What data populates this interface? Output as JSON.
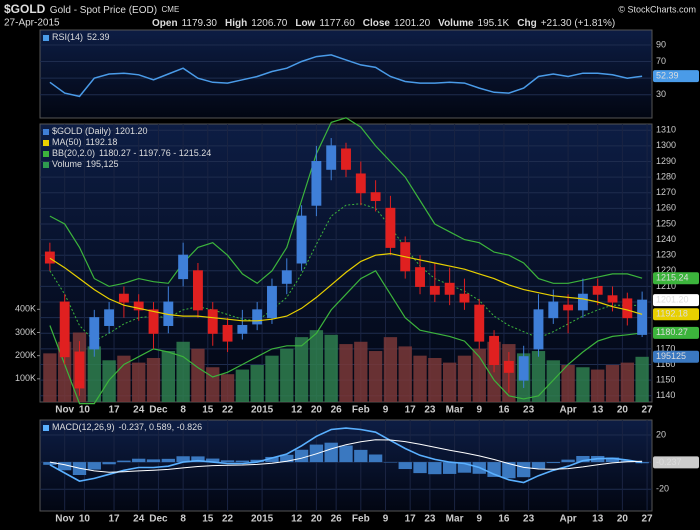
{
  "header": {
    "symbol": "$GOLD",
    "name": "Gold - Spot Price (EOD)",
    "exchange": "CME",
    "date": "27-Apr-2015",
    "quote": [
      {
        "label": "Open",
        "value": "1179.30"
      },
      {
        "label": "High",
        "value": "1206.70"
      },
      {
        "label": "Low",
        "value": "1177.60"
      },
      {
        "label": "Close",
        "value": "1201.20"
      },
      {
        "label": "Volume",
        "value": "195.1K"
      },
      {
        "label": "Chg",
        "value": "+21.30 (+1.81%)"
      }
    ],
    "credit": "© StockCharts.com"
  },
  "chart_data": [
    {
      "type": "line",
      "grid": true,
      "xlim": [
        -2,
        122
      ],
      "ylim": [
        2,
        108
      ],
      "yticks": [
        90,
        70,
        50,
        30
      ],
      "x": [
        0,
        3,
        6,
        9,
        12,
        15,
        18,
        21,
        24,
        27,
        30,
        33,
        36,
        39,
        42,
        45,
        48,
        51,
        54,
        57,
        60,
        63,
        66,
        69,
        72,
        75,
        78,
        81,
        84,
        87,
        90,
        93,
        96,
        99,
        102,
        105,
        108,
        111,
        114,
        117,
        120
      ],
      "series": [
        {
          "name": "RSI(14)",
          "last_label": "52.39",
          "color": "#4a9be8",
          "values": [
            45,
            32,
            28,
            50,
            55,
            56,
            54,
            48,
            55,
            62,
            50,
            45,
            44,
            48,
            52,
            58,
            62,
            70,
            76,
            78,
            72,
            66,
            63,
            52,
            46,
            44,
            44,
            45,
            44,
            38,
            33,
            32,
            38,
            52,
            55,
            52,
            56,
            56,
            54,
            50,
            52.39
          ]
        }
      ]
    },
    {
      "type": "candlestick",
      "title": "$GOLD (Daily)",
      "close_label": "1201.20",
      "grid": true,
      "up_color": "#3f7fd8",
      "down_color": "#e02020",
      "xlim": [
        -2,
        122
      ],
      "ylim": [
        1136,
        1314
      ],
      "yticks": [
        1140,
        1150,
        1160,
        1170,
        1180,
        1190,
        1200,
        1210,
        1220,
        1230,
        1240,
        1250,
        1260,
        1270,
        1280,
        1290,
        1300,
        1310
      ],
      "xticks": [
        {
          "value": 3,
          "label": "Nov"
        },
        {
          "value": 7,
          "label": "10"
        },
        {
          "value": 13,
          "label": "17"
        },
        {
          "value": 18,
          "label": "24"
        },
        {
          "value": 22,
          "label": "Dec"
        },
        {
          "value": 27,
          "label": "8"
        },
        {
          "value": 32,
          "label": "15"
        },
        {
          "value": 36,
          "label": "22"
        },
        {
          "value": 43,
          "label": "2015"
        },
        {
          "value": 50,
          "label": "12"
        },
        {
          "value": 54,
          "label": "20"
        },
        {
          "value": 58,
          "label": "26"
        },
        {
          "value": 63,
          "label": "Feb"
        },
        {
          "value": 68,
          "label": "9"
        },
        {
          "value": 73,
          "label": "17"
        },
        {
          "value": 77,
          "label": "23"
        },
        {
          "value": 82,
          "label": "Mar"
        },
        {
          "value": 87,
          "label": "9"
        },
        {
          "value": 92,
          "label": "16"
        },
        {
          "value": 97,
          "label": "23"
        },
        {
          "value": 105,
          "label": "Apr"
        },
        {
          "value": 111,
          "label": "13"
        },
        {
          "value": 116,
          "label": "20"
        },
        {
          "value": 121,
          "label": "27"
        }
      ],
      "x": [
        0,
        3,
        6,
        9,
        12,
        15,
        18,
        21,
        24,
        27,
        30,
        33,
        36,
        39,
        42,
        45,
        48,
        51,
        54,
        57,
        60,
        63,
        66,
        69,
        72,
        75,
        78,
        81,
        84,
        87,
        90,
        93,
        96,
        99,
        102,
        105,
        108,
        111,
        114,
        117,
        120
      ],
      "open": [
        1232,
        1200,
        1168,
        1170,
        1185,
        1205,
        1200,
        1195,
        1185,
        1215,
        1220,
        1195,
        1185,
        1180,
        1186,
        1190,
        1212,
        1225,
        1262,
        1285,
        1298,
        1282,
        1270,
        1260,
        1238,
        1222,
        1210,
        1212,
        1205,
        1198,
        1178,
        1162,
        1150,
        1170,
        1190,
        1198,
        1195,
        1210,
        1204,
        1202,
        1179.3
      ],
      "high": [
        1238,
        1205,
        1175,
        1195,
        1200,
        1210,
        1205,
        1200,
        1210,
        1238,
        1225,
        1200,
        1190,
        1195,
        1200,
        1215,
        1228,
        1262,
        1300,
        1305,
        1302,
        1290,
        1278,
        1268,
        1242,
        1230,
        1225,
        1222,
        1215,
        1202,
        1182,
        1168,
        1172,
        1205,
        1208,
        1205,
        1215,
        1215,
        1210,
        1206,
        1206.7
      ],
      "low": [
        1220,
        1160,
        1140,
        1165,
        1180,
        1190,
        1188,
        1170,
        1180,
        1210,
        1190,
        1172,
        1168,
        1176,
        1182,
        1186,
        1205,
        1220,
        1255,
        1278,
        1280,
        1262,
        1258,
        1230,
        1215,
        1205,
        1200,
        1198,
        1195,
        1170,
        1155,
        1142,
        1145,
        1165,
        1186,
        1180,
        1190,
        1198,
        1194,
        1185,
        1177.6
      ],
      "close": [
        1225,
        1165,
        1145,
        1190,
        1195,
        1200,
        1195,
        1180,
        1200,
        1230,
        1195,
        1180,
        1175,
        1185,
        1195,
        1210,
        1220,
        1255,
        1290,
        1300,
        1285,
        1270,
        1265,
        1235,
        1220,
        1210,
        1205,
        1205,
        1200,
        1175,
        1160,
        1155,
        1165,
        1195,
        1200,
        1195,
        1205,
        1205,
        1200,
        1190,
        1201.2
      ],
      "overlays": [
        {
          "name": "MA(50)",
          "label": "1192.18",
          "color": "#e8d000",
          "values": [
            1228,
            1222,
            1215,
            1208,
            1202,
            1198,
            1196,
            1194,
            1192,
            1191,
            1191,
            1190,
            1189,
            1188,
            1188,
            1189,
            1191,
            1196,
            1203,
            1211,
            1219,
            1226,
            1230,
            1231,
            1229,
            1227,
            1225,
            1223,
            1221,
            1218,
            1215,
            1211,
            1208,
            1206,
            1204,
            1203,
            1202,
            1200,
            1197,
            1195,
            1192.18
          ]
        },
        {
          "name": "BB(20,2.0)",
          "label": "1180.27 - 1197.76 - 1215.24",
          "upper_tag": "1215.24",
          "lower_tag": "1180.27",
          "color": "#3cb43c",
          "upper": [
            1255,
            1250,
            1235,
            1215,
            1210,
            1212,
            1215,
            1213,
            1212,
            1225,
            1235,
            1238,
            1230,
            1218,
            1212,
            1220,
            1235,
            1265,
            1295,
            1315,
            1318,
            1312,
            1300,
            1290,
            1280,
            1265,
            1250,
            1245,
            1240,
            1238,
            1232,
            1230,
            1225,
            1215,
            1212,
            1212,
            1214,
            1216,
            1218,
            1218,
            1215.24
          ],
          "middle": [
            1220,
            1205,
            1185,
            1175,
            1180,
            1186,
            1190,
            1191,
            1190,
            1195,
            1197,
            1195,
            1192,
            1189,
            1188,
            1195,
            1203,
            1218,
            1237,
            1255,
            1262,
            1263,
            1260,
            1248,
            1235,
            1223,
            1215,
            1211,
            1207,
            1201,
            1191,
            1185,
            1181,
            1177,
            1181,
            1186,
            1191,
            1195,
            1198,
            1198,
            1197.76
          ],
          "lower": [
            1185,
            1160,
            1135,
            1135,
            1150,
            1160,
            1165,
            1170,
            1168,
            1165,
            1158,
            1152,
            1155,
            1160,
            1165,
            1170,
            1172,
            1172,
            1180,
            1195,
            1205,
            1215,
            1220,
            1205,
            1190,
            1182,
            1180,
            1178,
            1175,
            1165,
            1150,
            1140,
            1138,
            1140,
            1150,
            1160,
            1168,
            1175,
            1178,
            1179,
            1180.27
          ]
        }
      ],
      "volume": {
        "name": "Volume",
        "label": "195,125",
        "tag": "195125",
        "color": "#2f9a4f",
        "up_color": "#2f7f4f",
        "down_color": "#7a3838",
        "ylim": [
          0,
          1200000
        ],
        "yticks": [
          {
            "value": 100000,
            "label": "100K"
          },
          {
            "value": 200000,
            "label": "200K"
          },
          {
            "value": 300000,
            "label": "300K"
          },
          {
            "value": 400000,
            "label": "400K"
          }
        ],
        "values": [
          210000,
          260000,
          300000,
          240000,
          180000,
          200000,
          170000,
          190000,
          220000,
          260000,
          230000,
          150000,
          120000,
          140000,
          160000,
          200000,
          230000,
          280000,
          310000,
          290000,
          250000,
          260000,
          220000,
          280000,
          240000,
          200000,
          190000,
          170000,
          200000,
          230000,
          260000,
          250000,
          210000,
          220000,
          180000,
          160000,
          150000,
          140000,
          160000,
          170000,
          195125
        ]
      }
    },
    {
      "type": "macd",
      "name": "MACD(12,26,9)",
      "label": "-0.237, 0.589, -0.826",
      "tag": "-0.237",
      "grid": true,
      "xlim": [
        -2,
        122
      ],
      "ylim": [
        -36,
        31
      ],
      "yticks": [
        20,
        0,
        -20
      ],
      "xticks": [
        {
          "value": 3,
          "label": "Nov"
        },
        {
          "value": 7,
          "label": "10"
        },
        {
          "value": 13,
          "label": "17"
        },
        {
          "value": 18,
          "label": "24"
        },
        {
          "value": 22,
          "label": "Dec"
        },
        {
          "value": 27,
          "label": "8"
        },
        {
          "value": 32,
          "label": "15"
        },
        {
          "value": 36,
          "label": "22"
        },
        {
          "value": 43,
          "label": "2015"
        },
        {
          "value": 50,
          "label": "12"
        },
        {
          "value": 54,
          "label": "20"
        },
        {
          "value": 58,
          "label": "26"
        },
        {
          "value": 63,
          "label": "Feb"
        },
        {
          "value": 68,
          "label": "9"
        },
        {
          "value": 73,
          "label": "17"
        },
        {
          "value": 77,
          "label": "23"
        },
        {
          "value": 82,
          "label": "Mar"
        },
        {
          "value": 87,
          "label": "9"
        },
        {
          "value": 92,
          "label": "16"
        },
        {
          "value": 97,
          "label": "23"
        },
        {
          "value": 105,
          "label": "Apr"
        },
        {
          "value": 111,
          "label": "13"
        },
        {
          "value": 116,
          "label": "20"
        },
        {
          "value": 121,
          "label": "27"
        }
      ],
      "x": [
        0,
        3,
        6,
        9,
        12,
        15,
        18,
        21,
        24,
        27,
        30,
        33,
        36,
        39,
        42,
        45,
        48,
        51,
        54,
        57,
        60,
        63,
        66,
        69,
        72,
        75,
        78,
        81,
        84,
        87,
        90,
        93,
        96,
        99,
        102,
        105,
        108,
        111,
        114,
        117,
        120
      ],
      "macd": {
        "color": "#5ab0ff",
        "values": [
          -2,
          -8,
          -14,
          -12,
          -9,
          -6,
          -4,
          -4,
          -3,
          0,
          1,
          0,
          -1,
          -1,
          0,
          3,
          6,
          12,
          19,
          24,
          25,
          24,
          22,
          16,
          10,
          5,
          2,
          0,
          -1,
          -4,
          -9,
          -13,
          -15,
          -10,
          -6,
          -3,
          1,
          2.5,
          2.8,
          1.5,
          -0.237
        ]
      },
      "signal": {
        "color": "#ffffff",
        "values": [
          0,
          -2,
          -4.5,
          -6.5,
          -7.4,
          -7.1,
          -6.5,
          -6,
          -5.4,
          -4.3,
          -3.2,
          -2.6,
          -2.3,
          -2.1,
          -1.7,
          -0.8,
          0.6,
          2.9,
          6.1,
          9.7,
          12.8,
          15,
          16.4,
          16.3,
          15.1,
          13.1,
          10.9,
          8.7,
          6.8,
          4.6,
          1.9,
          -1.1,
          -3.9,
          -5.1,
          -5.3,
          -4.8,
          -3.5,
          -2,
          -0.6,
          0.3,
          0.589
        ]
      },
      "histogram": {
        "color": "#3a78c0",
        "values": [
          -2,
          -6,
          -9.5,
          -5.5,
          -1.6,
          1.1,
          2.5,
          2,
          2.4,
          4.3,
          4.2,
          2.6,
          1.3,
          1.1,
          1.7,
          3.8,
          5.4,
          9.1,
          12.9,
          14.3,
          12.2,
          9,
          5.6,
          -0.3,
          -5.1,
          -8.1,
          -8.9,
          -8.7,
          -7.8,
          -8.6,
          -10.9,
          -11.9,
          -11.1,
          -4.9,
          -0.7,
          1.8,
          4.5,
          4.5,
          3.4,
          1.2,
          -0.826
        ]
      }
    }
  ]
}
